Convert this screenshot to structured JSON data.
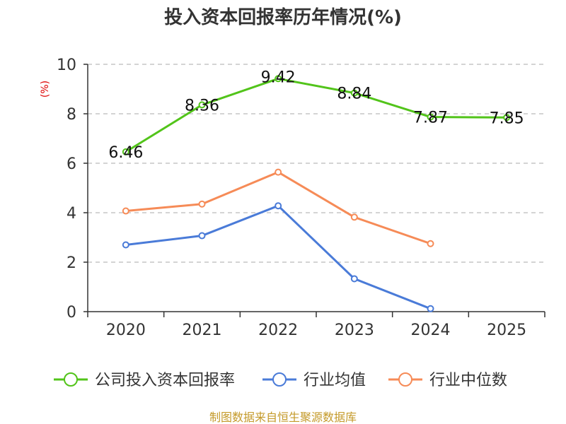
{
  "chart_data": {
    "type": "line",
    "title": "投入资本回报率历年情况(%)",
    "ylabel": "(%)",
    "xlabel": "",
    "categories": [
      "2020",
      "2021",
      "2022",
      "2023",
      "2024",
      "2025"
    ],
    "ylim": [
      0,
      10
    ],
    "yticks": [
      0,
      2,
      4,
      6,
      8,
      10
    ],
    "grid": true,
    "legend_position": "bottom",
    "series": [
      {
        "name": "公司投入资本回报率",
        "color": "#52c41a",
        "values": [
          6.46,
          8.36,
          9.42,
          8.84,
          7.87,
          7.85
        ],
        "labels": [
          "6.46",
          "8.36",
          "9.42",
          "8.84",
          "7.87",
          "7.85"
        ],
        "show_labels": true
      },
      {
        "name": "行业均值",
        "color": "#4a7bd8",
        "values": [
          2.7,
          3.07,
          4.28,
          1.33,
          0.12,
          null
        ],
        "show_labels": false
      },
      {
        "name": "行业中位数",
        "color": "#f68b57",
        "values": [
          4.07,
          4.35,
          5.64,
          3.82,
          2.75,
          null
        ],
        "show_labels": false
      }
    ],
    "source": "制图数据来自恒生聚源数据库"
  },
  "colors": {
    "axis": "#333333",
    "grid": "#bbbbbb",
    "unit": "#dd0000",
    "source": "#c49a2a"
  }
}
